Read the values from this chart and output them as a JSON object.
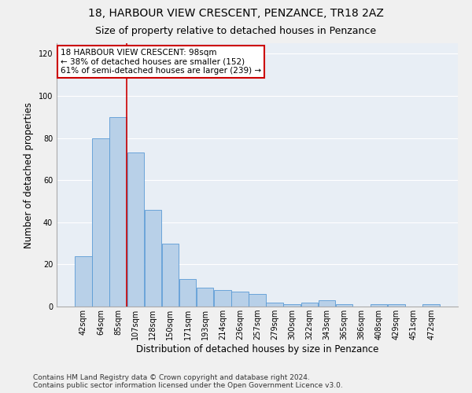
{
  "title": "18, HARBOUR VIEW CRESCENT, PENZANCE, TR18 2AZ",
  "subtitle": "Size of property relative to detached houses in Penzance",
  "xlabel": "Distribution of detached houses by size in Penzance",
  "ylabel": "Number of detached properties",
  "categories": [
    "42sqm",
    "64sqm",
    "85sqm",
    "107sqm",
    "128sqm",
    "150sqm",
    "171sqm",
    "193sqm",
    "214sqm",
    "236sqm",
    "257sqm",
    "279sqm",
    "300sqm",
    "322sqm",
    "343sqm",
    "365sqm",
    "386sqm",
    "408sqm",
    "429sqm",
    "451sqm",
    "472sqm"
  ],
  "values": [
    24,
    80,
    90,
    73,
    46,
    30,
    13,
    9,
    8,
    7,
    6,
    2,
    1,
    2,
    3,
    1,
    0,
    1,
    1,
    0,
    1
  ],
  "bar_color": "#b8d0e8",
  "bar_edge_color": "#5b9bd5",
  "red_line_x": 2.5,
  "annotation_line1": "18 HARBOUR VIEW CRESCENT: 98sqm",
  "annotation_line2": "← 38% of detached houses are smaller (152)",
  "annotation_line3": "61% of semi-detached houses are larger (239) →",
  "annotation_box_color": "#ffffff",
  "annotation_box_edge": "#cc0000",
  "footer_line1": "Contains HM Land Registry data © Crown copyright and database right 2024.",
  "footer_line2": "Contains public sector information licensed under the Open Government Licence v3.0.",
  "ylim": [
    0,
    125
  ],
  "yticks": [
    0,
    20,
    40,
    60,
    80,
    100,
    120
  ],
  "background_color": "#e8eef5",
  "grid_color": "#ffffff",
  "title_fontsize": 10,
  "subtitle_fontsize": 9,
  "tick_fontsize": 7,
  "label_fontsize": 8.5,
  "annotation_fontsize": 7.5,
  "footer_fontsize": 6.5
}
